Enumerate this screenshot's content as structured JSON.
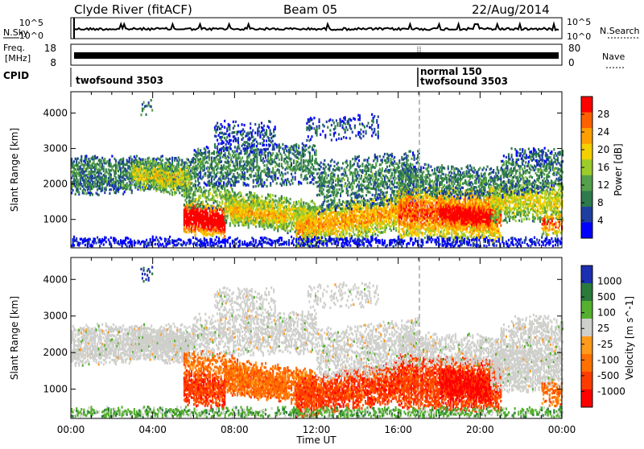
{
  "header": {
    "station": "Clyde River (fitACF)",
    "beam": "Beam 05",
    "date": "22/Aug/2014"
  },
  "strip_labels": {
    "nsky": "N.Sky",
    "nsearch": "N.Search",
    "freq_line1": "Freq.",
    "freq_line2": "[MHz]",
    "nave": "Nave",
    "cpid": "CPID",
    "noise_ticks_top": "10^5",
    "noise_ticks_bottom": "10^0",
    "freq_ticks": [
      "18",
      "8"
    ],
    "nave_ticks": [
      "80",
      "0"
    ]
  },
  "cpid_labels": {
    "left": "twofsound 3503",
    "right_line1": "normal 150",
    "right_line2": "twofsound 3503"
  },
  "colors": {
    "power": [
      "#0000ff",
      "#1f3fa0",
      "#2e7a4d",
      "#55a04a",
      "#9ccc2a",
      "#f5d000",
      "#ffa000",
      "#ff6000",
      "#ff0000"
    ],
    "velocity": [
      "#1c2fb0",
      "#2a7a3c",
      "#55b030",
      "#cfcfcc",
      "#ff9a1a",
      "#ff7000",
      "#ff3c00",
      "#ff0000"
    ]
  },
  "chart_data": [
    {
      "type": "heatmap",
      "title": "",
      "xlabel": "",
      "ylabel": "Slant Range [km]",
      "xlim": [
        "00:00",
        "24:00"
      ],
      "ylim": [
        200,
        4600
      ],
      "x_tick_labels": [
        "00:00",
        "04:00",
        "08:00",
        "12:00",
        "16:00",
        "20:00",
        "00:00"
      ],
      "y_tick_labels": [
        "1000",
        "2000",
        "3000",
        "4000"
      ],
      "colorbar": {
        "label": "Power [dB]",
        "tick_labels": [
          "28",
          "24",
          "20",
          "16",
          "12",
          "8",
          "4"
        ]
      }
    },
    {
      "type": "heatmap",
      "title": "",
      "xlabel": "Time UT",
      "ylabel": "Slant Range [km]",
      "xlim": [
        "00:00",
        "24:00"
      ],
      "ylim": [
        200,
        4600
      ],
      "x_tick_labels": [
        "00:00",
        "04:00",
        "08:00",
        "12:00",
        "16:00",
        "20:00",
        "00:00"
      ],
      "y_tick_labels": [
        "1000",
        "2000",
        "3000",
        "4000"
      ],
      "colorbar": {
        "label": "Velocity [m s^-1]",
        "tick_labels": [
          "1000",
          "500",
          "100",
          "25",
          "-25",
          "-100",
          "-500",
          "-1000"
        ]
      }
    }
  ]
}
